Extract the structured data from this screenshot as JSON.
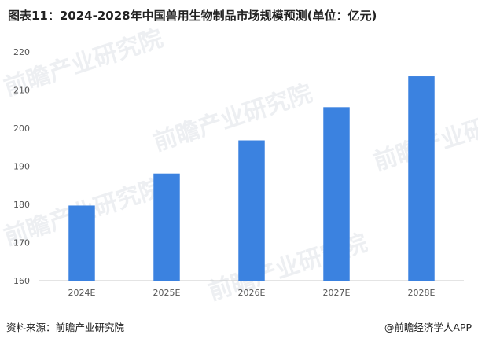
{
  "title": "图表11：2024-2028年中国兽用生物制品市场规模预测(单位：亿元)",
  "footer": {
    "source": "资料来源：前瞻产业研究院",
    "brand": "@前瞻经济学人APP"
  },
  "watermark": "前瞻产业研究院",
  "colors": {
    "bar": "#3b82e0",
    "axis": "#c8c8c8",
    "tick_text": "#555555"
  },
  "chart_data": {
    "type": "bar",
    "title": "图表11：2024-2028年中国兽用生物制品市场规模预测(单位：亿元)",
    "categories": [
      "2024E",
      "2025E",
      "2026E",
      "2027E",
      "2028E"
    ],
    "values": [
      179.7,
      188.1,
      196.8,
      205.5,
      213.6
    ],
    "yticks": [
      160,
      170,
      180,
      190,
      200,
      210,
      220
    ],
    "ylim": [
      160,
      220
    ],
    "xlabel": "",
    "ylabel": "",
    "grid": false,
    "legend": false
  }
}
